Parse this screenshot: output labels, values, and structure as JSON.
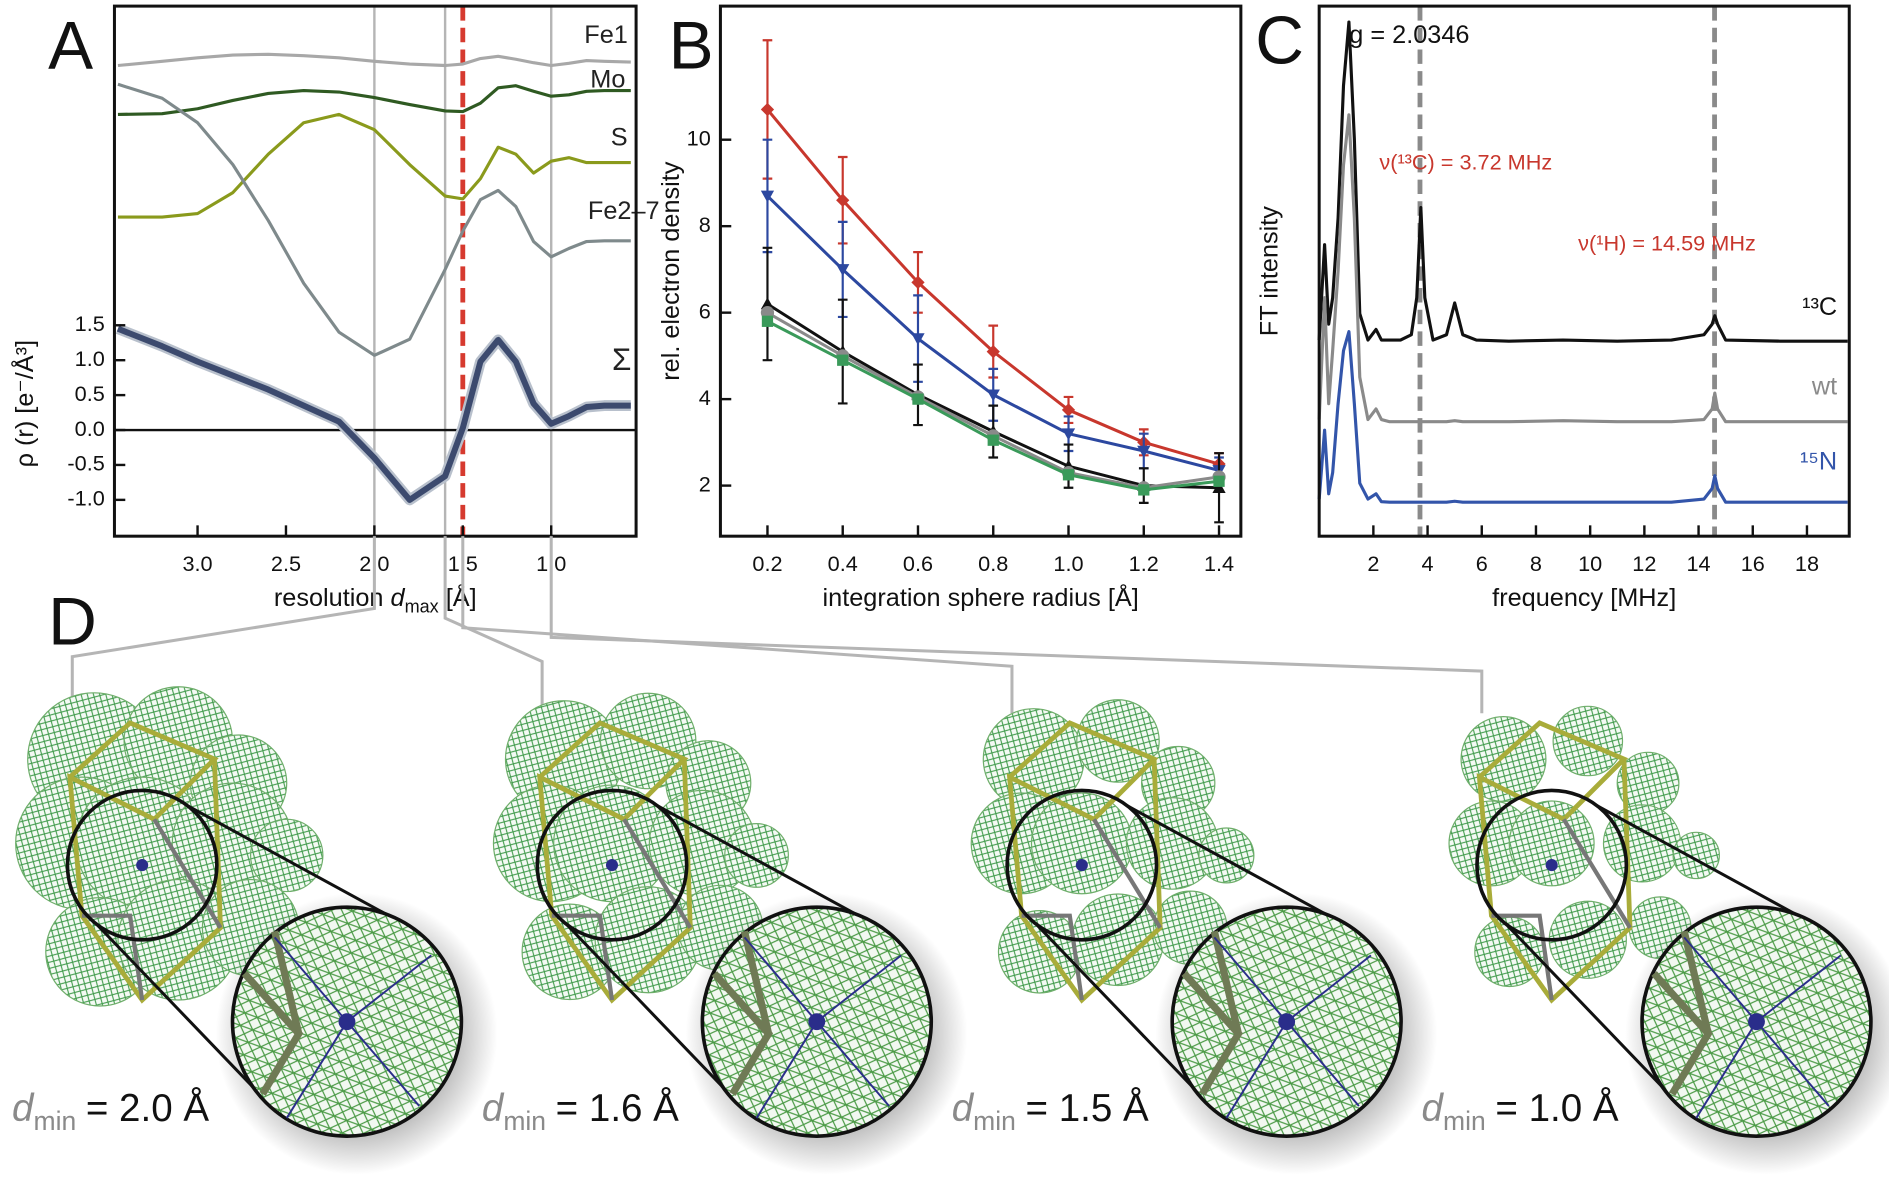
{
  "panel_labels": [
    "A",
    "B",
    "C",
    "D"
  ],
  "chart_data": [
    {
      "type": "line",
      "xlabel": [
        "resolution ",
        "d",
        "max",
        " [Å]"
      ],
      "ylabel": "ρ (r) [e⁻/Å³]",
      "xlim": [
        3.47,
        0.52
      ],
      "ylim": [
        -1.52,
        6.07
      ],
      "xticks": [
        {
          "value": 3,
          "label": "3.0"
        },
        2.5,
        {
          "value": 2,
          "label": "2.0"
        },
        1.5,
        {
          "value": 1,
          "label": "1.0"
        }
      ],
      "yticks": [
        {
          "value": -1,
          "label": "-1.0"
        },
        -0.5,
        {
          "value": 0,
          "label": "0.0"
        },
        0.5,
        {
          "value": 1,
          "label": "1.0"
        },
        1.5
      ],
      "hlines": [
        0
      ],
      "ref_lines": [
        {
          "x": 2.0,
          "color": "#b5b5b5",
          "dashed": false
        },
        {
          "x": 1.6,
          "color": "#b5b5b5",
          "dashed": false
        },
        {
          "x": 1.5,
          "color": "#d63a2f",
          "dashed": true
        },
        {
          "x": 1.0,
          "color": "#b5b5b5",
          "dashed": false
        }
      ],
      "x": [
        3.45,
        3.2,
        3.0,
        2.8,
        2.6,
        2.4,
        2.2,
        2.0,
        1.8,
        1.6,
        1.5,
        1.4,
        1.3,
        1.2,
        1.1,
        1.0,
        0.9,
        0.8,
        0.7,
        0.55
      ],
      "series": [
        {
          "name": "Fe1",
          "color": "#a8a8a8",
          "values": [
            5.22,
            5.28,
            5.33,
            5.37,
            5.38,
            5.36,
            5.33,
            5.28,
            5.24,
            5.22,
            5.24,
            5.32,
            5.35,
            5.31,
            5.26,
            5.22,
            5.25,
            5.29,
            5.28,
            5.27
          ]
        },
        {
          "name": "Mo",
          "color": "#2f5a22",
          "values": [
            4.52,
            4.53,
            4.6,
            4.72,
            4.82,
            4.86,
            4.84,
            4.76,
            4.66,
            4.57,
            4.56,
            4.68,
            4.9,
            4.93,
            4.85,
            4.78,
            4.8,
            4.85,
            4.86,
            4.86
          ]
        },
        {
          "name": "S",
          "color": "#8a9a1c",
          "values": [
            3.05,
            3.05,
            3.1,
            3.4,
            3.95,
            4.4,
            4.52,
            4.3,
            3.8,
            3.35,
            3.31,
            3.6,
            4.05,
            3.95,
            3.68,
            3.85,
            3.9,
            3.83,
            3.83,
            3.83
          ]
        },
        {
          "name": "Fe2–7",
          "color": "#7f8a8c",
          "values": [
            4.95,
            4.75,
            4.4,
            3.8,
            3.0,
            2.1,
            1.4,
            1.07,
            1.3,
            2.3,
            2.85,
            3.3,
            3.43,
            3.2,
            2.7,
            2.48,
            2.6,
            2.7,
            2.71,
            2.71
          ]
        },
        {
          "name": "Σ",
          "color": "#3c4a6e",
          "values": [
            1.45,
            1.2,
            0.98,
            0.78,
            0.58,
            0.35,
            0.12,
            -0.4,
            -1.0,
            -0.66,
            0.03,
            0.98,
            1.29,
            0.98,
            0.38,
            0.09,
            0.2,
            0.33,
            0.35,
            0.35
          ]
        }
      ]
    },
    {
      "type": "errorline",
      "xlabel": [
        "integration sphere radius [Å]"
      ],
      "ylabel": "rel. electron density",
      "xlim": [
        0.075,
        1.458
      ],
      "ylim": [
        0.83,
        13.09
      ],
      "xticks": [
        0.2,
        0.4,
        0.6,
        0.8,
        {
          "value": 1,
          "label": "1.0"
        },
        1.2,
        1.4
      ],
      "yticks": [
        2,
        4,
        6,
        8,
        10
      ],
      "x": [
        0.2,
        0.4,
        0.6,
        0.8,
        1.0,
        1.2,
        1.4
      ],
      "series": [
        {
          "color": "#c8372d",
          "marker": "diamond",
          "values": [
            10.7,
            8.6,
            6.7,
            5.1,
            3.75,
            3.0,
            2.5
          ],
          "errors": [
            1.6,
            1.0,
            0.7,
            0.6,
            0.3,
            0.3,
            0.25
          ]
        },
        {
          "color": "#2c48a0",
          "marker": "tri-down",
          "values": [
            8.7,
            7.0,
            5.4,
            4.1,
            3.2,
            2.8,
            2.35
          ],
          "errors": [
            1.3,
            1.1,
            1.0,
            0.6,
            0.4,
            0.4,
            0.3
          ]
        },
        {
          "color": "#111111",
          "marker": "tri-up",
          "values": [
            6.2,
            5.1,
            4.1,
            3.25,
            2.45,
            2.0,
            1.95
          ],
          "errors": [
            1.3,
            1.2,
            0.7,
            0.6,
            0.5,
            0.4,
            0.8
          ]
        },
        {
          "color": "#8a8a8a",
          "marker": "circle",
          "values": [
            6.0,
            5.0,
            4.05,
            3.15,
            2.3,
            1.95,
            2.2
          ]
        },
        {
          "color": "#3a9a5a",
          "marker": "square",
          "values": [
            5.8,
            4.9,
            4.0,
            3.05,
            2.25,
            1.9,
            2.1
          ]
        }
      ]
    },
    {
      "type": "line",
      "xlabel": [
        "frequency [MHz]"
      ],
      "ylabel": "FT intensity",
      "xlim": [
        0,
        19.56
      ],
      "ylim": [
        0,
        1
      ],
      "xticks": [
        2,
        4,
        6,
        8,
        10,
        12,
        14,
        16,
        18
      ],
      "ref_lines": [
        {
          "x": 3.72,
          "color": "#8a8a8a",
          "dashed": true
        },
        {
          "x": 14.59,
          "color": "#8a8a8a",
          "dashed": true
        }
      ],
      "annotations": [
        {
          "text": "g = 2.0346",
          "color": "#111111"
        },
        {
          "text": "ν(¹³C) = 3.72 MHz",
          "color": "#c8372d"
        },
        {
          "text": "ν(¹H) = 14.59 MHz",
          "color": "#c8372d"
        }
      ],
      "x": [
        0,
        0.2,
        0.35,
        0.5,
        0.7,
        0.9,
        1.1,
        1.3,
        1.5,
        1.8,
        2.1,
        2.3,
        2.6,
        3.0,
        3.4,
        3.6,
        3.75,
        3.9,
        4.2,
        4.7,
        5.0,
        5.3,
        5.8,
        7,
        9,
        11,
        13,
        14.2,
        14.5,
        14.6,
        14.7,
        15,
        17,
        19.5
      ],
      "series": [
        {
          "name": "¹³C",
          "color": "#111111",
          "values": [
            0.37,
            0.55,
            0.4,
            0.45,
            0.6,
            0.85,
            0.97,
            0.75,
            0.42,
            0.37,
            0.39,
            0.37,
            0.37,
            0.37,
            0.38,
            0.45,
            0.62,
            0.45,
            0.37,
            0.38,
            0.44,
            0.38,
            0.37,
            0.368,
            0.37,
            0.368,
            0.37,
            0.38,
            0.4,
            0.416,
            0.4,
            0.37,
            0.368,
            0.368
          ]
        },
        {
          "name": "wt",
          "color": "#8a8a8a",
          "values": [
            0.22,
            0.45,
            0.25,
            0.35,
            0.5,
            0.7,
            0.795,
            0.6,
            0.3,
            0.22,
            0.24,
            0.22,
            0.216,
            0.216,
            0.216,
            0.216,
            0.216,
            0.216,
            0.216,
            0.216,
            0.218,
            0.216,
            0.216,
            0.216,
            0.218,
            0.216,
            0.216,
            0.22,
            0.24,
            0.27,
            0.24,
            0.216,
            0.216,
            0.216
          ]
        },
        {
          "name": "¹⁵N",
          "color": "#3355aa",
          "values": [
            0.07,
            0.2,
            0.08,
            0.12,
            0.25,
            0.35,
            0.386,
            0.25,
            0.1,
            0.07,
            0.08,
            0.065,
            0.064,
            0.064,
            0.064,
            0.064,
            0.064,
            0.064,
            0.064,
            0.064,
            0.066,
            0.064,
            0.064,
            0.064,
            0.064,
            0.064,
            0.064,
            0.07,
            0.09,
            0.114,
            0.09,
            0.064,
            0.064,
            0.064
          ]
        }
      ]
    }
  ],
  "renderings": [
    {
      "symbol": "d",
      "subscript": "min",
      "value": "= 2.0 Å"
    },
    {
      "symbol": "d",
      "subscript": "min",
      "value": "= 1.6 Å"
    },
    {
      "symbol": "d",
      "subscript": "min",
      "value": "= 1.5 Å"
    },
    {
      "symbol": "d",
      "subscript": "min",
      "value": "= 1.0 Å"
    }
  ]
}
